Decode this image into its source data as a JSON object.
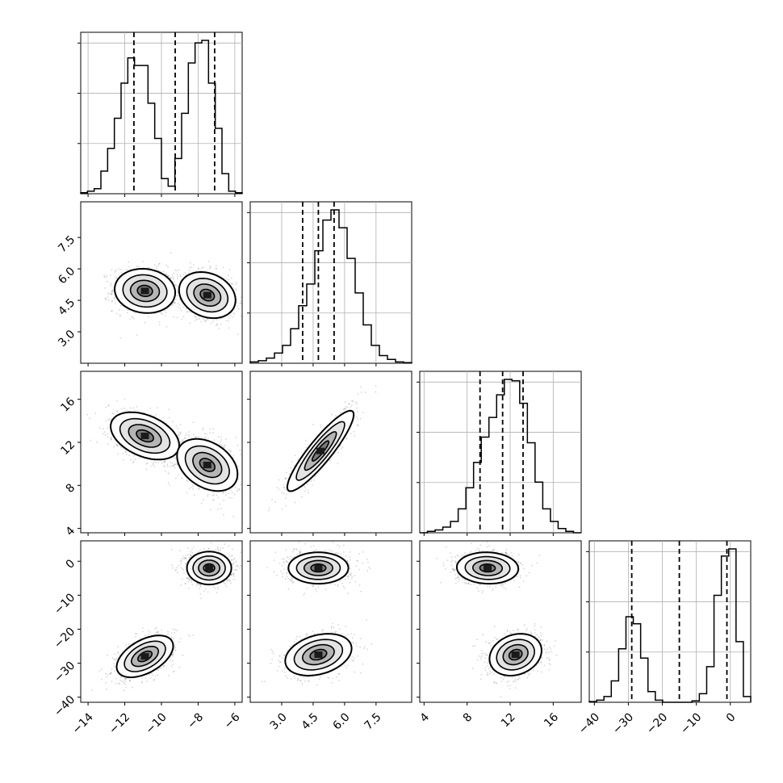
{
  "chart_data": {
    "type": "corner",
    "description_levels": "1D histograms on diagonal with 16/50/84 percentile dashed lines; 2D contour/density plots below diagonal",
    "parameters": [
      {
        "index": 0,
        "range": [
          -14.4,
          -5.6
        ],
        "ticks": [
          -14,
          -12,
          -10,
          -8,
          -6
        ],
        "tick_labels": [
          "−14",
          "−12",
          "−10",
          "−8",
          "−6"
        ],
        "quantiles": [
          -11.5,
          -9.25,
          -7.1
        ],
        "histogram": [
          0.02,
          0.05,
          0.1,
          0.45,
          0.9,
          1.5,
          2.2,
          2.7,
          2.55,
          2.55,
          1.8,
          1.1,
          0.3,
          0.15,
          0.7,
          1.6,
          2.6,
          3.0,
          3.05,
          2.2,
          1.3,
          0.4,
          0.05,
          0.02
        ]
      },
      {
        "index": 1,
        "range": [
          1.5,
          9.2
        ],
        "ticks": [
          3.0,
          4.5,
          6.0,
          7.5
        ],
        "tick_labels": [
          "3.0",
          "4.5",
          "6.0",
          "7.5"
        ],
        "quantiles": [
          4.0,
          4.75,
          5.5
        ],
        "histogram": [
          0.01,
          0.02,
          0.04,
          0.08,
          0.14,
          0.27,
          0.45,
          0.62,
          0.88,
          1.12,
          1.2,
          1.06,
          0.82,
          0.55,
          0.3,
          0.14,
          0.06,
          0.03,
          0.01,
          0.005
        ]
      },
      {
        "index": 2,
        "range": [
          3.6,
          18.6
        ],
        "ticks": [
          4,
          8,
          12,
          16
        ],
        "tick_labels": [
          "4",
          "8",
          "12",
          "16"
        ],
        "quantiles": [
          9.2,
          11.3,
          13.2
        ],
        "histogram": [
          0.0,
          0.01,
          0.02,
          0.04,
          0.08,
          0.17,
          0.32,
          0.5,
          0.68,
          0.82,
          0.98,
          1.09,
          1.08,
          0.92,
          0.64,
          0.36,
          0.17,
          0.08,
          0.03,
          0.01,
          0.0
        ]
      },
      {
        "index": 3,
        "range": [
          -41.5,
          6.0
        ],
        "ticks": [
          -40,
          -30,
          -20,
          -10,
          0
        ],
        "tick_labels": [
          "−40",
          "−30",
          "−20",
          "−10",
          "0"
        ],
        "quantiles": [
          -29.0,
          -15.0,
          -1.0
        ],
        "histogram": [
          0.01,
          0.03,
          0.08,
          0.3,
          0.75,
          1.2,
          1.1,
          0.62,
          0.15,
          0.03,
          0.0,
          0.0,
          0.0,
          0.0,
          0.02,
          0.12,
          0.5,
          1.5,
          2.05,
          2.15,
          0.85,
          0.08
        ]
      }
    ],
    "pairs": [
      {
        "x": 0,
        "y": 1,
        "modes": [
          {
            "mx": -10.9,
            "my": 4.95,
            "sx": 0.75,
            "sy": 0.48,
            "rho": -0.08
          },
          {
            "mx": -7.5,
            "my": 4.75,
            "sx": 0.7,
            "sy": 0.5,
            "rho": -0.22
          }
        ]
      },
      {
        "x": 0,
        "y": 2,
        "modes": [
          {
            "mx": -10.9,
            "my": 12.6,
            "sx": 0.85,
            "sy": 1.0,
            "rho": -0.4
          },
          {
            "mx": -7.5,
            "my": 9.9,
            "sx": 0.75,
            "sy": 1.1,
            "rho": -0.35
          }
        ]
      },
      {
        "x": 0,
        "y": 3,
        "modes": [
          {
            "mx": -10.9,
            "my": -28.0,
            "sx": 0.7,
            "sy": 2.8,
            "rho": 0.5
          },
          {
            "mx": -7.4,
            "my": -2.0,
            "sx": 0.55,
            "sy": 2.2,
            "rho": 0.0
          }
        ]
      },
      {
        "x": 1,
        "y": 2,
        "modes": [
          {
            "mx": 4.85,
            "my": 11.2,
            "sx": 0.72,
            "sy": 1.7,
            "rho": 0.9
          }
        ]
      },
      {
        "x": 1,
        "y": 3,
        "modes": [
          {
            "mx": 4.75,
            "my": -2.0,
            "sx": 0.65,
            "sy": 2.1,
            "rho": 0.0
          },
          {
            "mx": 4.75,
            "my": -27.5,
            "sx": 0.72,
            "sy": 2.8,
            "rho": 0.3
          }
        ]
      },
      {
        "x": 2,
        "y": 3,
        "modes": [
          {
            "mx": 9.9,
            "my": -2.0,
            "sx": 1.3,
            "sy": 2.1,
            "rho": -0.05
          },
          {
            "mx": 12.5,
            "my": -27.5,
            "sx": 1.1,
            "sy": 2.8,
            "rho": 0.2
          }
        ]
      }
    ]
  }
}
